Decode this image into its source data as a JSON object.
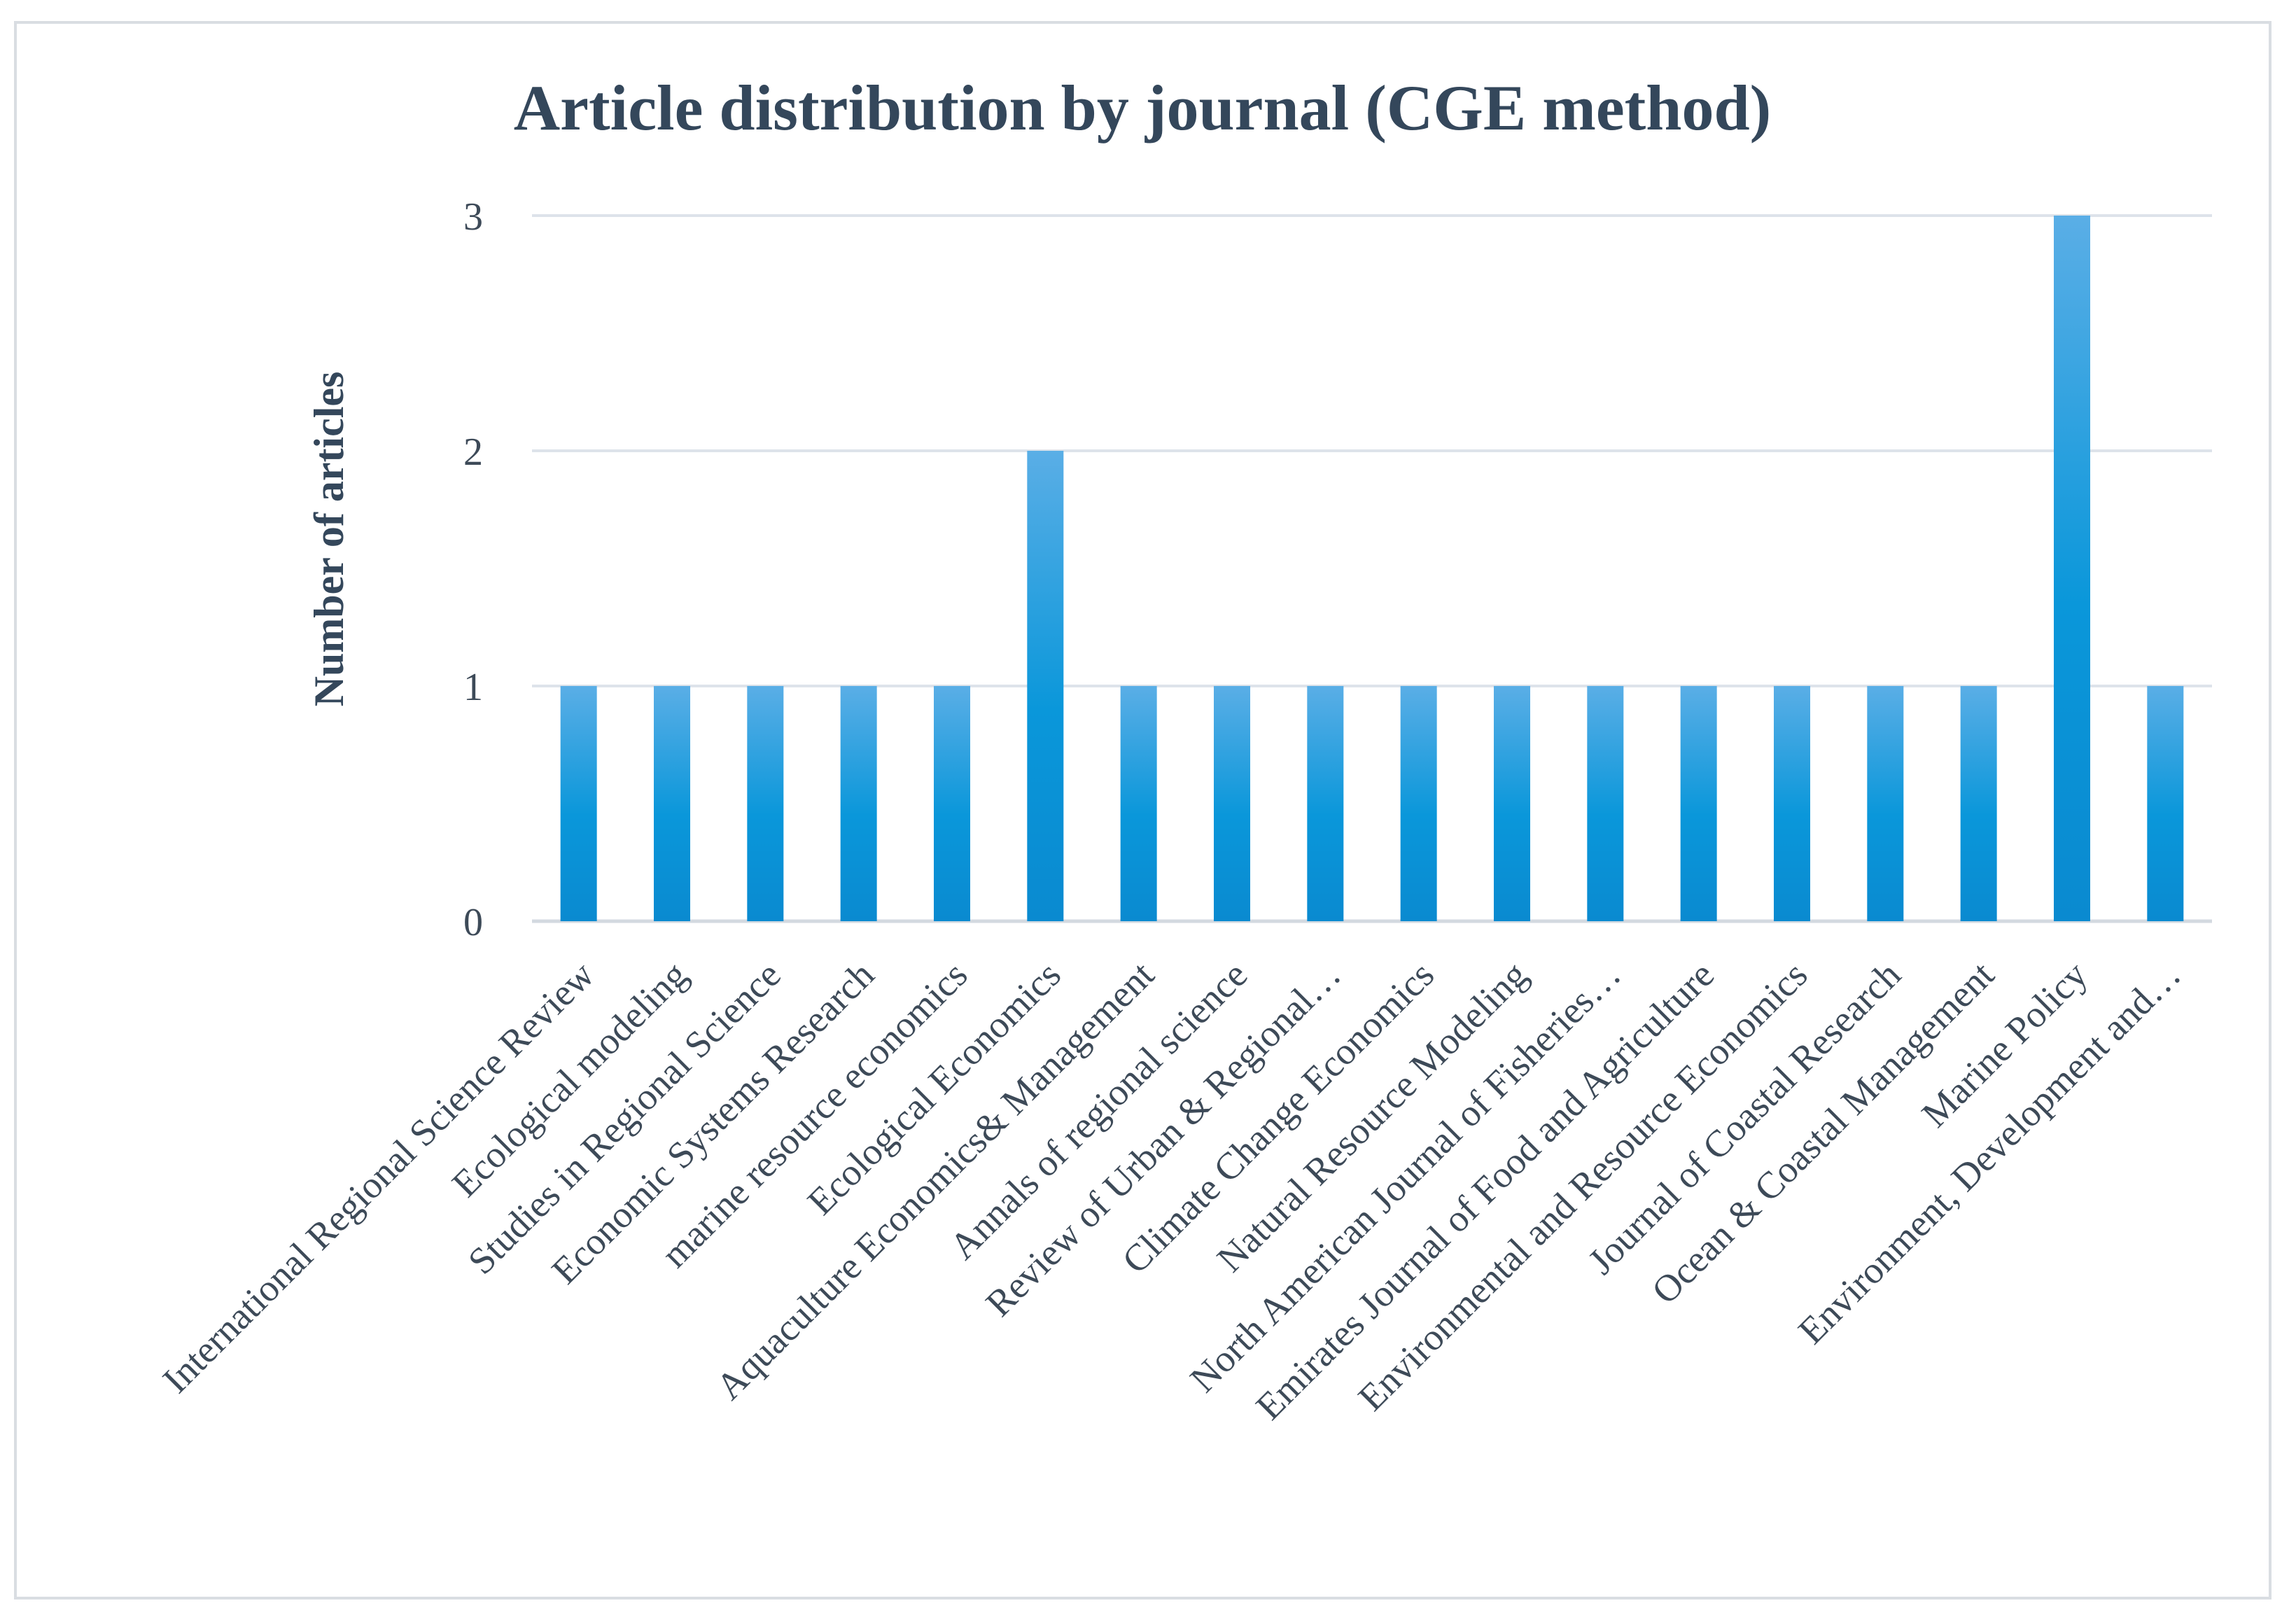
{
  "chart_data": {
    "type": "bar",
    "title": "Article distribution by journal (CGE method)",
    "xlabel": "",
    "ylabel": "Number of articles",
    "ylim": [
      0,
      3
    ],
    "yticks": [
      0,
      1,
      2,
      3
    ],
    "grid": true,
    "legend": "none",
    "bar_color_top": "#5aaee6",
    "bar_color_mid": "#0a97da",
    "bar_color_bottom": "#0a8ad0",
    "categories": [
      "International Regional Science Review",
      "Ecological modeling",
      "Studies in Regional Science",
      "Economic Systems Research",
      "marine resource economics",
      "Ecological Economics",
      "Aquaculture Economics& Management",
      "Annals of regional science",
      "Review of Urban & Regional…",
      "Climate Change Economics",
      "Natural Resource Modeling",
      "North American Journal of Fisheries…",
      "Emirates Journal of Food and Agriculture",
      "Environmental and Resource Economics",
      "Journal of Coastal Research",
      "Ocean & Coastal Management",
      "Marine Policy",
      "Environment, Development and…"
    ],
    "values": [
      1,
      1,
      1,
      1,
      1,
      2,
      1,
      1,
      1,
      1,
      1,
      1,
      1,
      1,
      1,
      1,
      3,
      1
    ]
  }
}
